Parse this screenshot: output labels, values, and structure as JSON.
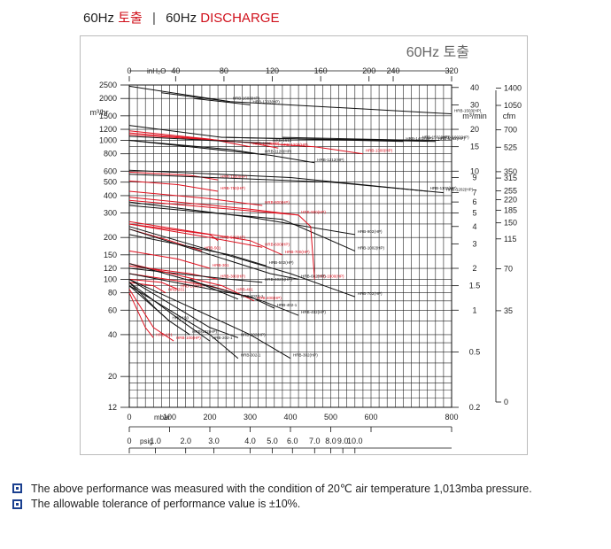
{
  "header": {
    "title_left": "60Hz",
    "title_left_red": "토출",
    "separator": "|",
    "title_right": "60Hz",
    "title_right_red": "DISCHARGE"
  },
  "chart_data": {
    "type": "line",
    "title": "60Hz 토출",
    "y_axis_left": {
      "label": "m³/hr",
      "scale": "log",
      "ylim": [
        12,
        2500
      ],
      "ticks": [
        2500,
        2000,
        1500,
        1200,
        1000,
        800,
        600,
        500,
        400,
        300,
        200,
        150,
        120,
        100,
        80,
        60,
        40,
        20,
        12
      ]
    },
    "y_axis_right_1": {
      "label": "m³/min",
      "ticks": [
        "40",
        "30",
        "20",
        "15",
        "10",
        "9",
        "7",
        "6",
        "5",
        "4",
        "3",
        "2",
        "1.5",
        "1",
        "0.5",
        "0.2"
      ]
    },
    "y_axis_right_2": {
      "label": "cfm",
      "ticks": [
        "1400",
        "1050",
        "700",
        "525",
        "350",
        "315",
        "255",
        "220",
        "185",
        "150",
        "115",
        "70",
        "35",
        "0"
      ]
    },
    "x_axis_top": {
      "label": "inH₂O",
      "ticks": [
        "0",
        "40",
        "80",
        "120",
        "160",
        "200",
        "240",
        "320"
      ]
    },
    "x_axis_bottom": {
      "label": "mbar",
      "xlim": [
        0,
        800
      ],
      "ticks": [
        "0",
        "100",
        "200",
        "300",
        "400",
        "500",
        "600",
        "800"
      ]
    },
    "x_axis_psig": {
      "label": "psig",
      "ticks": [
        "0",
        "1.0",
        "2.0",
        "3.0",
        "4.0",
        "5.0",
        "6.0",
        "7.0",
        "8.0",
        "9.0",
        "10.0"
      ]
    },
    "grid": true,
    "series": [
      {
        "name": "HRB-1503(HP)",
        "color": "black",
        "x": [
          0,
          250,
          800
        ],
        "y": [
          2450,
          1900,
          1550
        ]
      },
      {
        "name": "HRB-1603(HP)",
        "color": "black",
        "x": [
          80,
          250
        ],
        "y": [
          2200,
          1900
        ]
      },
      {
        "name": "HRB-1703(HP)",
        "color": "black",
        "x": [
          160,
          300
        ],
        "y": [
          2000,
          1800
        ]
      },
      {
        "name": "HRB-1302(HP)",
        "color": "black",
        "x": [
          0,
          230,
          760
        ],
        "y": [
          1280,
          1050,
          980
        ]
      },
      {
        "name": "HRB-1402(HP)",
        "color": "black",
        "x": [
          240,
          680
        ],
        "y": [
          1050,
          980
        ]
      },
      {
        "name": "HRB-1502(HP)",
        "color": "black",
        "x": [
          380,
          720
        ],
        "y": [
          1050,
          1000
        ]
      },
      {
        "name": "HRB-1602(HP)",
        "color": "black",
        "x": [
          420,
          770
        ],
        "y": [
          1020,
          1000
        ]
      },
      {
        "name": "HRB-1100(HP)",
        "color": "red",
        "x": [
          0,
          200,
          300
        ],
        "y": [
          1170,
          1020,
          900
        ]
      },
      {
        "name": "HRB-1200(HP)",
        "color": "red",
        "x": [
          0,
          300,
          370
        ],
        "y": [
          1130,
          960,
          880
        ]
      },
      {
        "name": "HRB-1300(HP)",
        "color": "red",
        "x": [
          0,
          460,
          580
        ],
        "y": [
          1100,
          900,
          800
        ]
      },
      {
        "name": "HRB-1612",
        "color": "black",
        "x": [
          0,
          350
        ],
        "y": [
          1070,
          950
        ]
      },
      {
        "name": "HRB-1120(HP)",
        "color": "black",
        "x": [
          0,
          250,
          330
        ],
        "y": [
          1000,
          860,
          790
        ]
      },
      {
        "name": "HRB-1212(HP)",
        "color": "black",
        "x": [
          0,
          350,
          460
        ],
        "y": [
          1000,
          780,
          690
        ]
      },
      {
        "name": "HRB-1100(HP)",
        "color": "red",
        "x": [
          0,
          150,
          220
        ],
        "y": [
          590,
          560,
          520
        ]
      },
      {
        "name": "HRB-750(HP)",
        "color": "red",
        "x": [
          0,
          120,
          220
        ],
        "y": [
          510,
          480,
          430
        ]
      },
      {
        "name": "HRB-1102(HP)",
        "color": "black",
        "x": [
          0,
          400,
          740
        ],
        "y": [
          610,
          540,
          430
        ]
      },
      {
        "name": "HRB-1202(HP)",
        "color": "black",
        "x": [
          0,
          500,
          780
        ],
        "y": [
          570,
          500,
          420
        ]
      },
      {
        "name": "HRB-800(HP)",
        "color": "red",
        "x": [
          0,
          200,
          330
        ],
        "y": [
          430,
          380,
          340
        ]
      },
      {
        "name": "HRB-900(HP)",
        "color": "red",
        "x": [
          0,
          300,
          420
        ],
        "y": [
          390,
          320,
          290
        ]
      },
      {
        "name": "HRB-902(HP)",
        "color": "black",
        "x": [
          0,
          300,
          560
        ],
        "y": [
          360,
          280,
          210
        ]
      },
      {
        "name": "HRB-1002(HP)",
        "color": "black",
        "x": [
          0,
          380,
          560
        ],
        "y": [
          340,
          270,
          160
        ]
      },
      {
        "name": "HRB-1000(HP)",
        "color": "red",
        "x": [
          0,
          420,
          450,
          460
        ],
        "y": [
          370,
          290,
          240,
          100
        ]
      },
      {
        "name": "HRB-500(HP)",
        "color": "red",
        "x": [
          0,
          200,
          220
        ],
        "y": [
          250,
          210,
          190
        ]
      },
      {
        "name": "HRB-501",
        "color": "red",
        "x": [
          0,
          100,
          180
        ],
        "y": [
          230,
          190,
          160
        ]
      },
      {
        "name": "HRB-301",
        "color": "red",
        "x": [
          0,
          120,
          200
        ],
        "y": [
          160,
          140,
          120
        ]
      },
      {
        "name": "HRB-600(HP)",
        "color": "red",
        "x": [
          0,
          200,
          330
        ],
        "y": [
          250,
          200,
          170
        ]
      },
      {
        "name": "HRB-700(HP)",
        "color": "red",
        "x": [
          0,
          300,
          380
        ],
        "y": [
          260,
          190,
          150
        ]
      },
      {
        "name": "HRB-502(HP)",
        "color": "black",
        "x": [
          0,
          250,
          340
        ],
        "y": [
          210,
          150,
          125
        ]
      },
      {
        "name": "HRB-602(HP)",
        "color": "black",
        "x": [
          0,
          350,
          420
        ],
        "y": [
          230,
          110,
          100
        ]
      },
      {
        "name": "HRB-702(HP)",
        "color": "black",
        "x": [
          0,
          400,
          560
        ],
        "y": [
          240,
          110,
          75
        ]
      },
      {
        "name": "HRB-300(HP)",
        "color": "red",
        "x": [
          0,
          150,
          220
        ],
        "y": [
          125,
          110,
          100
        ]
      },
      {
        "name": "HRB-200(HP)",
        "color": "red",
        "x": [
          0,
          80,
          120
        ],
        "y": [
          100,
          95,
          85
        ]
      },
      {
        "name": "HRB-201",
        "color": "red",
        "x": [
          0,
          60,
          90
        ],
        "y": [
          95,
          90,
          80
        ]
      },
      {
        "name": "HRB-402S(HP)",
        "color": "black",
        "x": [
          0,
          250,
          330
        ],
        "y": [
          120,
          100,
          95
        ]
      },
      {
        "name": "HRB-401",
        "color": "red",
        "x": [
          0,
          200,
          260
        ],
        "y": [
          110,
          90,
          80
        ]
      },
      {
        "name": "HRB-402S-1",
        "color": "black",
        "x": [
          150,
          270
        ],
        "y": [
          100,
          72
        ]
      },
      {
        "name": "HRB-400(HP)",
        "color": "red",
        "x": [
          0,
          230,
          310
        ],
        "y": [
          130,
          90,
          70
        ]
      },
      {
        "name": "HRB-402-1",
        "color": "black",
        "x": [
          0,
          300,
          360
        ],
        "y": [
          110,
          75,
          62
        ]
      },
      {
        "name": "HRB-402(HP)",
        "color": "black",
        "x": [
          0,
          330,
          420
        ],
        "y": [
          130,
          70,
          55
        ]
      },
      {
        "name": "HRB-150",
        "color": "black",
        "x": [
          0,
          70,
          100
        ],
        "y": [
          95,
          60,
          50
        ]
      },
      {
        "name": "HRB-102(HP)",
        "color": "black",
        "x": [
          0,
          100,
          150
        ],
        "y": [
          90,
          50,
          40
        ]
      },
      {
        "name": "HRB-101",
        "color": "red",
        "x": [
          0,
          40,
          60
        ],
        "y": [
          80,
          45,
          38
        ]
      },
      {
        "name": "HRB-100(HP)",
        "color": "red",
        "x": [
          0,
          60,
          110
        ],
        "y": [
          85,
          45,
          36
        ]
      },
      {
        "name": "HRB-202-1",
        "color": "black",
        "x": [
          0,
          130,
          200
        ],
        "y": [
          95,
          50,
          36
        ]
      },
      {
        "name": "HRB-202(HP)",
        "color": "black",
        "x": [
          0,
          200,
          270
        ],
        "y": [
          100,
          45,
          38
        ]
      },
      {
        "name": "HRB-302-1",
        "color": "black",
        "x": [
          0,
          200,
          270
        ],
        "y": [
          90,
          40,
          27
        ]
      },
      {
        "name": "HRB-302(HP)",
        "color": "black",
        "x": [
          0,
          300,
          400
        ],
        "y": [
          100,
          40,
          27
        ]
      }
    ]
  },
  "notes": [
    "The above performance was measured with the condition of 20℃ air temperature 1,013mba pressure.",
    "The allowable tolerance of performance value is ±10%."
  ]
}
